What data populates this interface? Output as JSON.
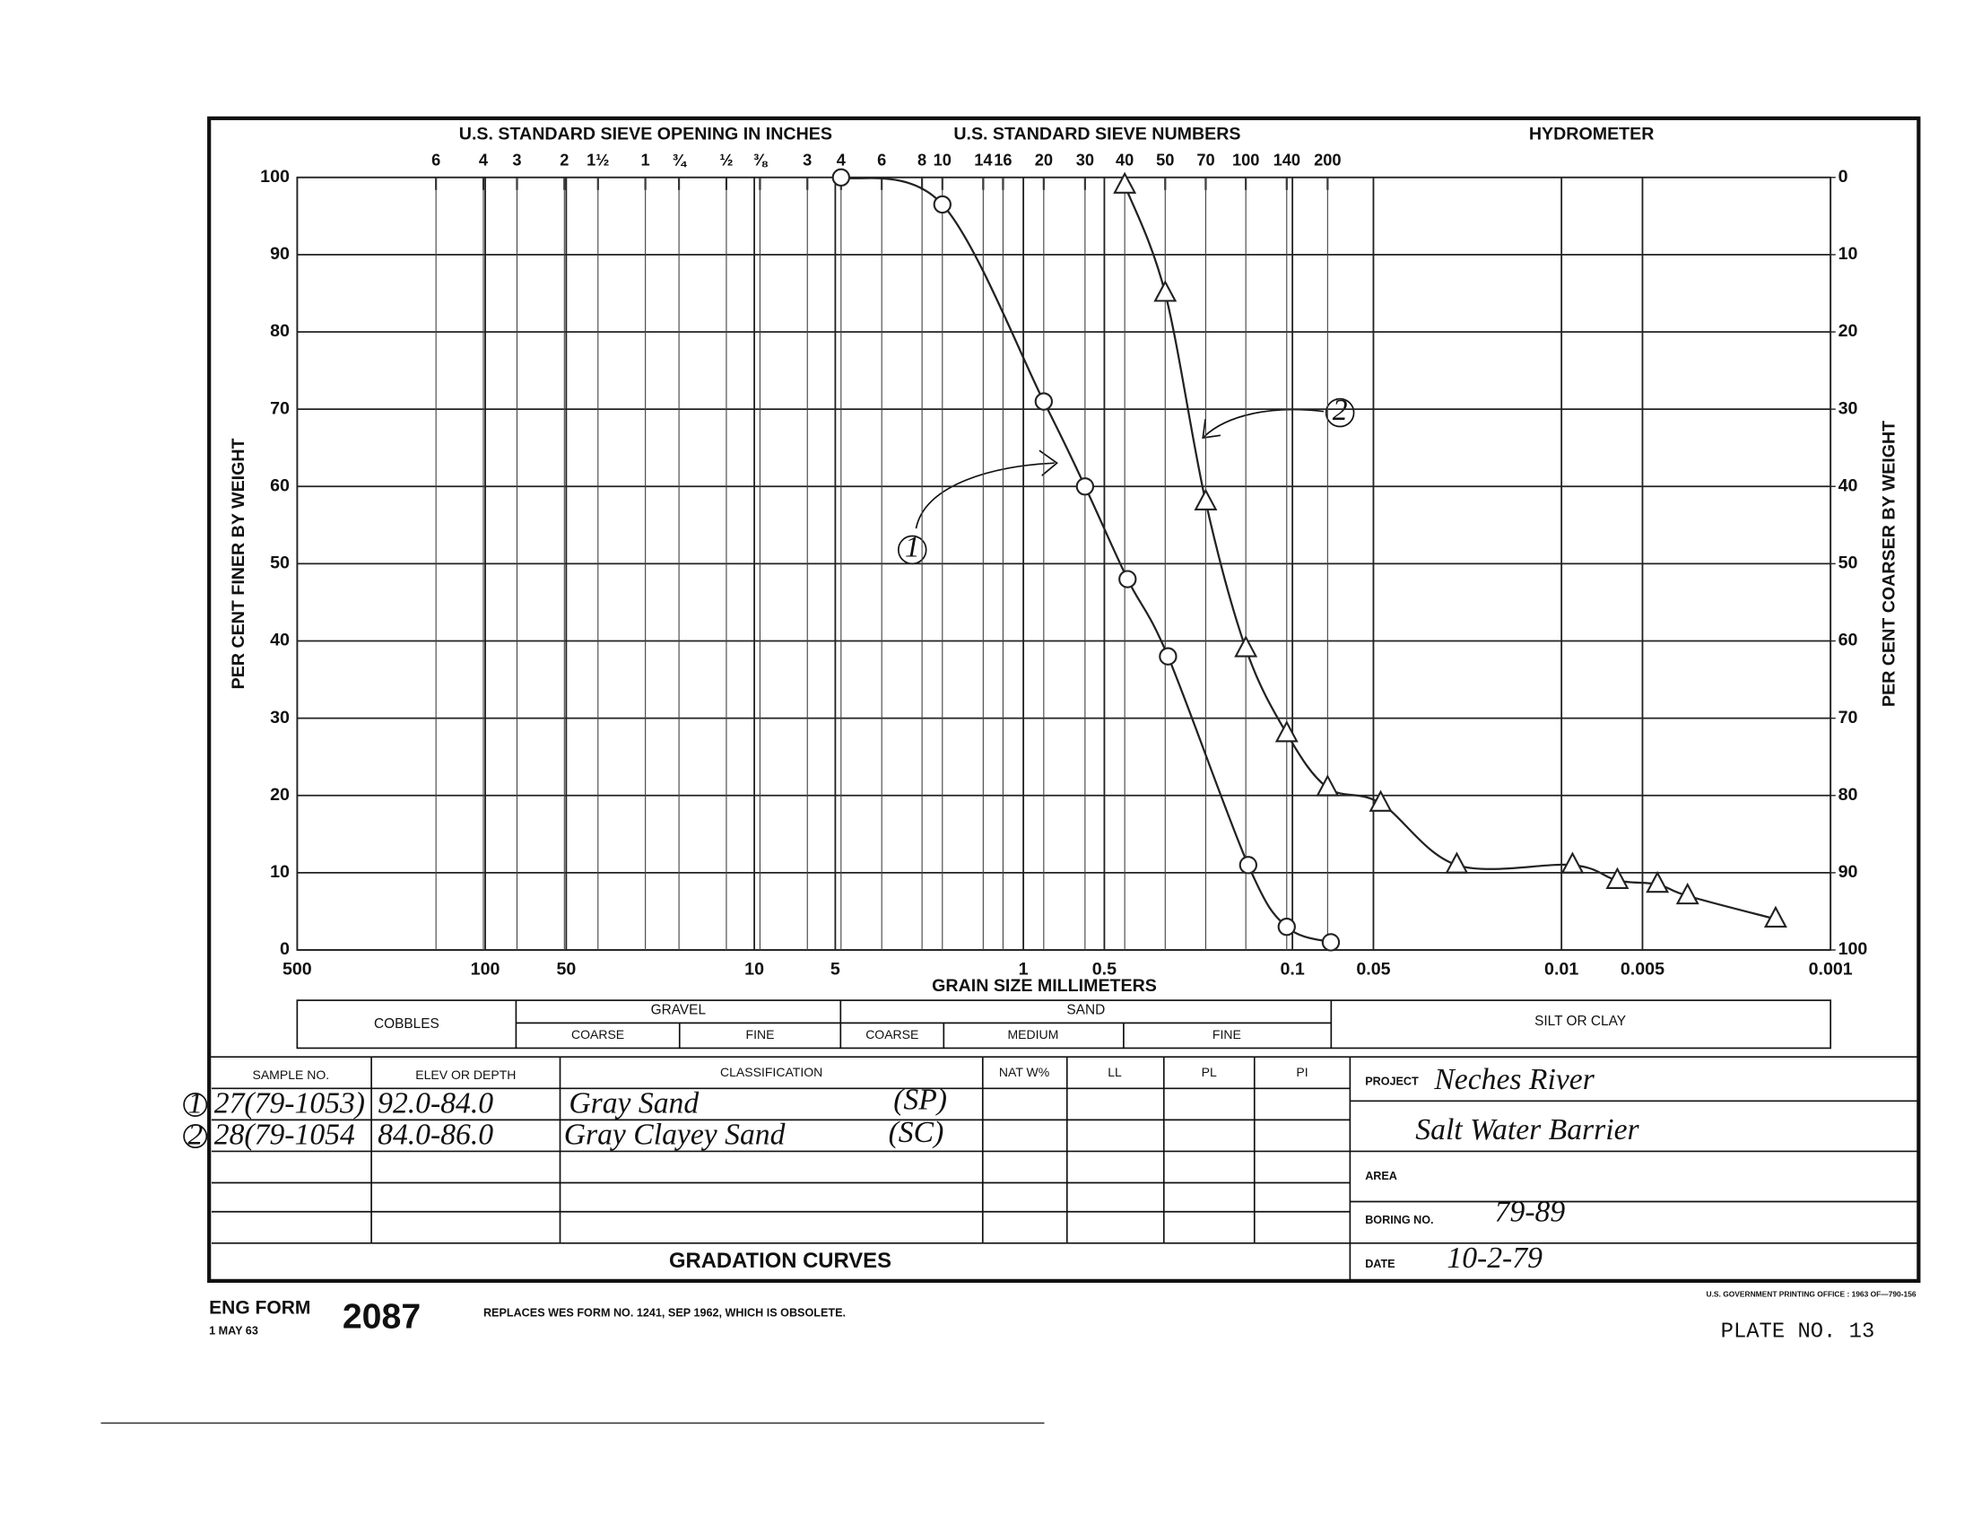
{
  "chart_data": {
    "type": "line",
    "top_title_inches": "U.S. STANDARD SIEVE OPENING IN INCHES",
    "top_title_sieves": "U.S. STANDARD SIEVE NUMBERS",
    "top_title_hydrometer": "HYDROMETER",
    "xlabel": "GRAIN SIZE MILLIMETERS",
    "ylabel": "PER CENT FINER BY WEIGHT",
    "y2label": "PER CENT COARSER BY WEIGHT",
    "xscale": "log",
    "xlim": [
      500,
      0.001
    ],
    "xticks": [
      500,
      100,
      50,
      10,
      5,
      1,
      0.5,
      0.1,
      0.05,
      0.01,
      0.005,
      0.001
    ],
    "ylim": [
      0,
      100
    ],
    "yticks": [
      0,
      10,
      20,
      30,
      40,
      50,
      60,
      70,
      80,
      90,
      100
    ],
    "y2lim": [
      100,
      0
    ],
    "y2ticks": [
      0,
      10,
      20,
      30,
      40,
      50,
      60,
      70,
      80,
      90,
      100
    ],
    "top_ticks_inches": [
      {
        "value": 152.4,
        "label": "6"
      },
      {
        "value": 101.6,
        "label": "4"
      },
      {
        "value": 76.2,
        "label": "3"
      },
      {
        "value": 50.8,
        "label": "2"
      },
      {
        "value": 38.1,
        "label": "1½"
      },
      {
        "value": 25.4,
        "label": "1"
      },
      {
        "value": 19.05,
        "label": "¾"
      },
      {
        "value": 12.7,
        "label": "½"
      },
      {
        "value": 9.525,
        "label": "⅜"
      }
    ],
    "top_ticks_sieves": [
      {
        "value": 6.35,
        "label": "3"
      },
      {
        "value": 4.76,
        "label": "4"
      },
      {
        "value": 3.36,
        "label": "6"
      },
      {
        "value": 2.38,
        "label": "8"
      },
      {
        "value": 2.0,
        "label": "10"
      },
      {
        "value": 1.41,
        "label": "14"
      },
      {
        "value": 1.19,
        "label": "16"
      },
      {
        "value": 0.84,
        "label": "20"
      },
      {
        "value": 0.59,
        "label": "30"
      },
      {
        "value": 0.42,
        "label": "40"
      },
      {
        "value": 0.297,
        "label": "50"
      },
      {
        "value": 0.21,
        "label": "70"
      },
      {
        "value": 0.149,
        "label": "100"
      },
      {
        "value": 0.105,
        "label": "140"
      },
      {
        "value": 0.074,
        "label": "200"
      }
    ],
    "grid": true,
    "series": [
      {
        "name": "1",
        "color": "#222222",
        "marker": "circle",
        "x": [
          4.76,
          2.0,
          0.84,
          0.59,
          0.41,
          0.29,
          0.146,
          0.105,
          0.072
        ],
        "values": [
          100,
          96.5,
          71,
          60,
          48,
          38,
          11,
          3,
          1
        ]
      },
      {
        "name": "2",
        "color": "#222222",
        "marker": "triangle",
        "x": [
          0.42,
          0.297,
          0.21,
          0.149,
          0.105,
          0.074,
          0.047,
          0.0245,
          0.0091,
          0.0062,
          0.0044,
          0.0034,
          0.0016
        ],
        "values": [
          99,
          85,
          58,
          39,
          28,
          21,
          19,
          11,
          11,
          9,
          8.5,
          7,
          4
        ]
      }
    ]
  },
  "soil_classes": {
    "cobbles": "COBBLES",
    "gravel": "GRAVEL",
    "gravel_coarse": "COARSE",
    "gravel_fine": "FINE",
    "sand": "SAND",
    "sand_coarse": "COARSE",
    "sand_medium": "MEDIUM",
    "sand_fine": "FINE",
    "silt_clay": "SILT OR CLAY"
  },
  "table": {
    "headers": [
      "SAMPLE NO.",
      "ELEV OR DEPTH",
      "CLASSIFICATION",
      "NAT W%",
      "LL",
      "PL",
      "PI"
    ],
    "rows": [
      {
        "marker": "1",
        "sample": "27(79-1053)",
        "depth": "92.0-84.0",
        "classification": "Gray Sand",
        "symbol": "(SP)"
      },
      {
        "marker": "2",
        "sample": "28(79-1054",
        "depth": "84.0-86.0",
        "classification": "Gray Clayey Sand",
        "symbol": "(SC)"
      }
    ],
    "footer": "GRADATION CURVES"
  },
  "project_block": {
    "project_label": "PROJECT",
    "project": "Neches River",
    "project_line2": "Salt Water Barrier",
    "area_label": "AREA",
    "boring_label": "BORING NO.",
    "boring": "79-89",
    "date_label": "DATE",
    "date": "10-2-79"
  },
  "footer": {
    "form_label": "ENG FORM",
    "form_date": "1 MAY 63",
    "form_number": "2087",
    "replaces": "REPLACES WES FORM NO. 1241, SEP 1962, WHICH IS OBSOLETE.",
    "printing": "U.S. GOVERNMENT PRINTING OFFICE : 1963 OF—790-156",
    "plate": "PLATE NO. 13"
  }
}
